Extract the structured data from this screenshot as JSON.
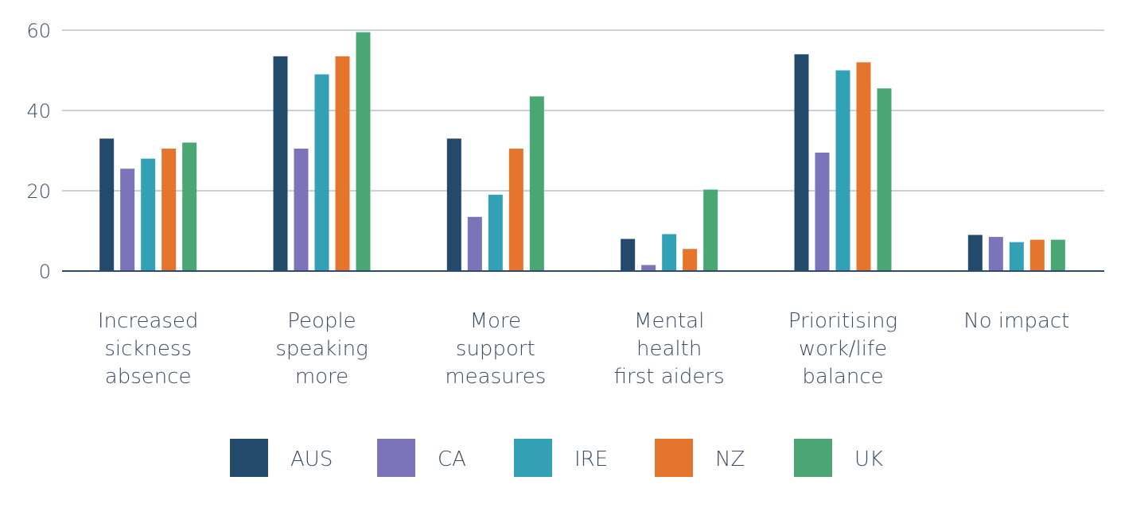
{
  "chart_data": {
    "type": "bar",
    "categories": [
      [
        "Increased",
        "sickness",
        "absence"
      ],
      [
        "People",
        "speaking",
        "more"
      ],
      [
        "More",
        "support",
        "measures"
      ],
      [
        "Mental",
        "health",
        "first aiders"
      ],
      [
        "Prioritising",
        "work/life",
        "balance"
      ],
      [
        "No impact"
      ]
    ],
    "series": [
      {
        "name": "AUS",
        "color": "#244a6b",
        "values": [
          33,
          53.5,
          33,
          8,
          54,
          9
        ]
      },
      {
        "name": "CA",
        "color": "#7b74b8",
        "values": [
          25.5,
          30.5,
          13.5,
          1.5,
          29.5,
          8.5
        ]
      },
      {
        "name": "IRE",
        "color": "#33a1b5",
        "values": [
          28,
          49,
          19,
          9.2,
          50,
          7.2
        ]
      },
      {
        "name": "NZ",
        "color": "#e5742d",
        "values": [
          30.5,
          53.5,
          30.5,
          5.5,
          52,
          7.8
        ]
      },
      {
        "name": "UK",
        "color": "#4aa672",
        "values": [
          32,
          59.5,
          43.5,
          20.3,
          45.5,
          7.8
        ]
      }
    ],
    "yticks": [
      0,
      20,
      40,
      60
    ],
    "ylim": [
      0,
      60
    ],
    "grid": true,
    "legend_position": "bottom",
    "axis_color": "#2e4a6a",
    "grid_color": "#c9d2dc"
  }
}
